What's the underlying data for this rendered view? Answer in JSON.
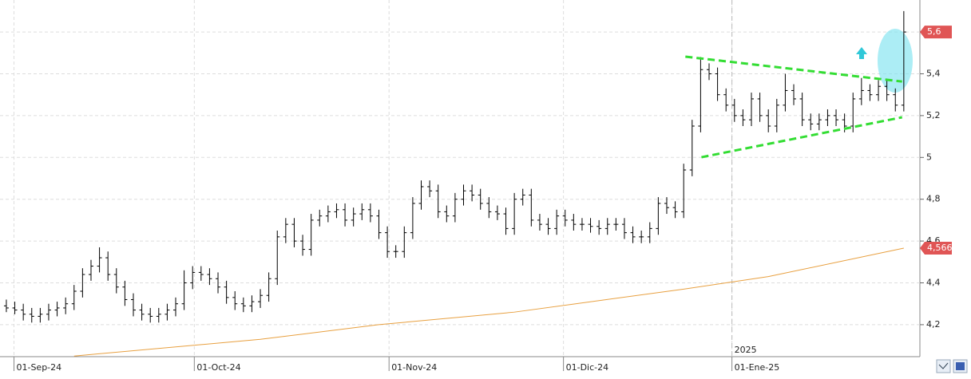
{
  "chart_data": {
    "type": "ohlc",
    "x": [
      0,
      1,
      2,
      3,
      4,
      5,
      6,
      7,
      8,
      9,
      10,
      11,
      12,
      13,
      14,
      15,
      16,
      17,
      18,
      19,
      20,
      21,
      22,
      23,
      24,
      25,
      26,
      27,
      28,
      29,
      30,
      31,
      32,
      33,
      34,
      35,
      36,
      37,
      38,
      39,
      40,
      41,
      42,
      43,
      44,
      45,
      46,
      47,
      48,
      49,
      50,
      51,
      52,
      53,
      54,
      55,
      56,
      57,
      58,
      59,
      60,
      61,
      62,
      63,
      64,
      65,
      66,
      67,
      68,
      69,
      70,
      71,
      72,
      73,
      74,
      75,
      76,
      77,
      78,
      79,
      80,
      81,
      82,
      83,
      84,
      85,
      86,
      87,
      88,
      89,
      90,
      91,
      92,
      93,
      94,
      95,
      96,
      97,
      98,
      99,
      100,
      101,
      102,
      103,
      104,
      105,
      106
    ],
    "open": [
      4.29,
      4.28,
      4.27,
      4.25,
      4.24,
      4.25,
      4.27,
      4.28,
      4.3,
      4.36,
      4.44,
      4.48,
      4.52,
      4.44,
      4.38,
      4.32,
      4.27,
      4.25,
      4.24,
      4.25,
      4.27,
      4.3,
      4.4,
      4.45,
      4.44,
      4.42,
      4.38,
      4.33,
      4.3,
      4.29,
      4.31,
      4.34,
      4.42,
      4.62,
      4.68,
      4.6,
      4.56,
      4.7,
      4.72,
      4.74,
      4.75,
      4.7,
      4.73,
      4.75,
      4.72,
      4.64,
      4.55,
      4.55,
      4.64,
      4.78,
      4.86,
      4.84,
      4.74,
      4.72,
      4.8,
      4.84,
      4.82,
      4.78,
      4.74,
      4.73,
      4.66,
      4.8,
      4.82,
      4.7,
      4.68,
      4.66,
      4.72,
      4.7,
      4.68,
      4.68,
      4.67,
      4.66,
      4.68,
      4.68,
      4.64,
      4.62,
      4.62,
      4.66,
      4.78,
      4.76,
      4.74,
      4.94,
      5.15,
      5.42,
      5.4,
      5.3,
      5.25,
      5.2,
      5.18,
      5.28,
      5.2,
      5.15,
      5.25,
      5.32,
      5.28,
      5.18,
      5.16,
      5.18,
      5.2,
      5.18,
      5.15,
      5.28,
      5.32,
      5.3,
      5.34,
      5.3,
      5.25
    ],
    "high": [
      4.32,
      4.31,
      4.3,
      4.28,
      4.28,
      4.3,
      4.31,
      4.33,
      4.39,
      4.47,
      4.51,
      4.57,
      4.55,
      4.47,
      4.41,
      4.35,
      4.3,
      4.28,
      4.28,
      4.3,
      4.33,
      4.46,
      4.48,
      4.48,
      4.47,
      4.45,
      4.41,
      4.36,
      4.33,
      4.34,
      4.37,
      4.45,
      4.65,
      4.71,
      4.71,
      4.63,
      4.73,
      4.75,
      4.77,
      4.78,
      4.78,
      4.76,
      4.78,
      4.78,
      4.75,
      4.67,
      4.58,
      4.67,
      4.81,
      4.89,
      4.89,
      4.87,
      4.77,
      4.83,
      4.87,
      4.87,
      4.85,
      4.81,
      4.77,
      4.76,
      4.83,
      4.85,
      4.85,
      4.73,
      4.71,
      4.75,
      4.75,
      4.73,
      4.71,
      4.71,
      4.7,
      4.71,
      4.71,
      4.71,
      4.67,
      4.65,
      4.69,
      4.81,
      4.81,
      4.79,
      4.97,
      5.18,
      5.48,
      5.45,
      5.43,
      5.33,
      5.28,
      5.23,
      5.31,
      5.31,
      5.23,
      5.28,
      5.4,
      5.35,
      5.31,
      5.21,
      5.21,
      5.23,
      5.23,
      5.21,
      5.31,
      5.38,
      5.35,
      5.37,
      5.37,
      5.33,
      5.7
    ],
    "low": [
      4.26,
      4.25,
      4.22,
      4.21,
      4.21,
      4.22,
      4.24,
      4.25,
      4.27,
      4.33,
      4.41,
      4.45,
      4.41,
      4.35,
      4.29,
      4.24,
      4.22,
      4.21,
      4.21,
      4.22,
      4.24,
      4.27,
      4.37,
      4.41,
      4.39,
      4.35,
      4.3,
      4.27,
      4.26,
      4.26,
      4.28,
      4.31,
      4.39,
      4.59,
      4.57,
      4.53,
      4.53,
      4.67,
      4.69,
      4.71,
      4.67,
      4.67,
      4.7,
      4.69,
      4.61,
      4.52,
      4.52,
      4.52,
      4.61,
      4.75,
      4.81,
      4.71,
      4.69,
      4.69,
      4.77,
      4.79,
      4.75,
      4.71,
      4.7,
      4.63,
      4.63,
      4.77,
      4.67,
      4.65,
      4.63,
      4.63,
      4.67,
      4.65,
      4.65,
      4.64,
      4.63,
      4.63,
      4.65,
      4.61,
      4.59,
      4.59,
      4.59,
      4.63,
      4.73,
      4.71,
      4.71,
      4.91,
      5.12,
      5.37,
      5.27,
      5.22,
      5.17,
      5.15,
      5.15,
      5.17,
      5.12,
      5.12,
      5.22,
      5.25,
      5.15,
      5.13,
      5.13,
      5.15,
      5.15,
      5.12,
      5.12,
      5.25,
      5.27,
      5.27,
      5.27,
      5.22,
      5.22
    ],
    "close": [
      4.28,
      4.27,
      4.25,
      4.24,
      4.25,
      4.27,
      4.28,
      4.3,
      4.36,
      4.44,
      4.48,
      4.52,
      4.44,
      4.38,
      4.32,
      4.27,
      4.25,
      4.24,
      4.25,
      4.27,
      4.3,
      4.4,
      4.45,
      4.44,
      4.42,
      4.38,
      4.33,
      4.3,
      4.29,
      4.31,
      4.34,
      4.42,
      4.62,
      4.68,
      4.6,
      4.56,
      4.7,
      4.72,
      4.74,
      4.75,
      4.7,
      4.73,
      4.75,
      4.72,
      4.64,
      4.55,
      4.55,
      4.64,
      4.78,
      4.86,
      4.84,
      4.74,
      4.72,
      4.8,
      4.84,
      4.82,
      4.78,
      4.74,
      4.73,
      4.66,
      4.8,
      4.82,
      4.7,
      4.68,
      4.66,
      4.72,
      4.7,
      4.68,
      4.68,
      4.67,
      4.66,
      4.68,
      4.68,
      4.64,
      4.62,
      4.62,
      4.66,
      4.78,
      4.76,
      4.74,
      4.94,
      5.15,
      5.42,
      5.4,
      5.3,
      5.25,
      5.2,
      5.18,
      5.28,
      5.2,
      5.15,
      5.25,
      5.32,
      5.28,
      5.18,
      5.16,
      5.18,
      5.2,
      5.18,
      5.15,
      5.28,
      5.32,
      5.3,
      5.34,
      5.3,
      5.25,
      5.6
    ],
    "bar_color": "#000000",
    "moving_average": {
      "color": "#e8a040",
      "x": [
        8,
        30,
        44,
        60,
        80,
        90,
        106
      ],
      "values": [
        4.05,
        4.13,
        4.2,
        4.26,
        4.37,
        4.43,
        4.566
      ]
    },
    "trendlines": [
      {
        "color": "#33dd33",
        "x": [
          80.2,
          105.8
        ],
        "values": [
          5.482,
          5.363
        ]
      },
      {
        "color": "#33dd33",
        "x": [
          82.1,
          105.8
        ],
        "values": [
          5.001,
          5.192
        ]
      }
    ],
    "price_markers": [
      {
        "value": 5.6,
        "label": "5,6",
        "color": "#e05555"
      },
      {
        "value": 4.566,
        "label": "4,566",
        "color": "#e05555"
      }
    ],
    "xlim": [
      -0.75,
      107.9
    ],
    "ylim": [
      4.047,
      5.753
    ],
    "xticks": [
      {
        "value": 0.9,
        "label": "01-Sep-24"
      },
      {
        "value": 22.2,
        "label": "01-Oct-24"
      },
      {
        "value": 45.2,
        "label": "01-Nov-24"
      },
      {
        "value": 65.8,
        "label": "01-Dic-24"
      },
      {
        "value": 85.7,
        "label": "01-Ene-25"
      }
    ],
    "year_divider": {
      "value": 85.7,
      "label": "2025"
    },
    "yticks": [
      {
        "value": 4.2,
        "label": "4,2"
      },
      {
        "value": 4.4,
        "label": "4,4"
      },
      {
        "value": 4.6,
        "label": "4,6"
      },
      {
        "value": 4.8,
        "label": "4,8"
      },
      5,
      {
        "value": 5.2,
        "label": "5,2"
      },
      {
        "value": 5.4,
        "label": "5,4"
      },
      {
        "value": 5.6,
        "label": "5,6"
      }
    ],
    "grid": true
  }
}
